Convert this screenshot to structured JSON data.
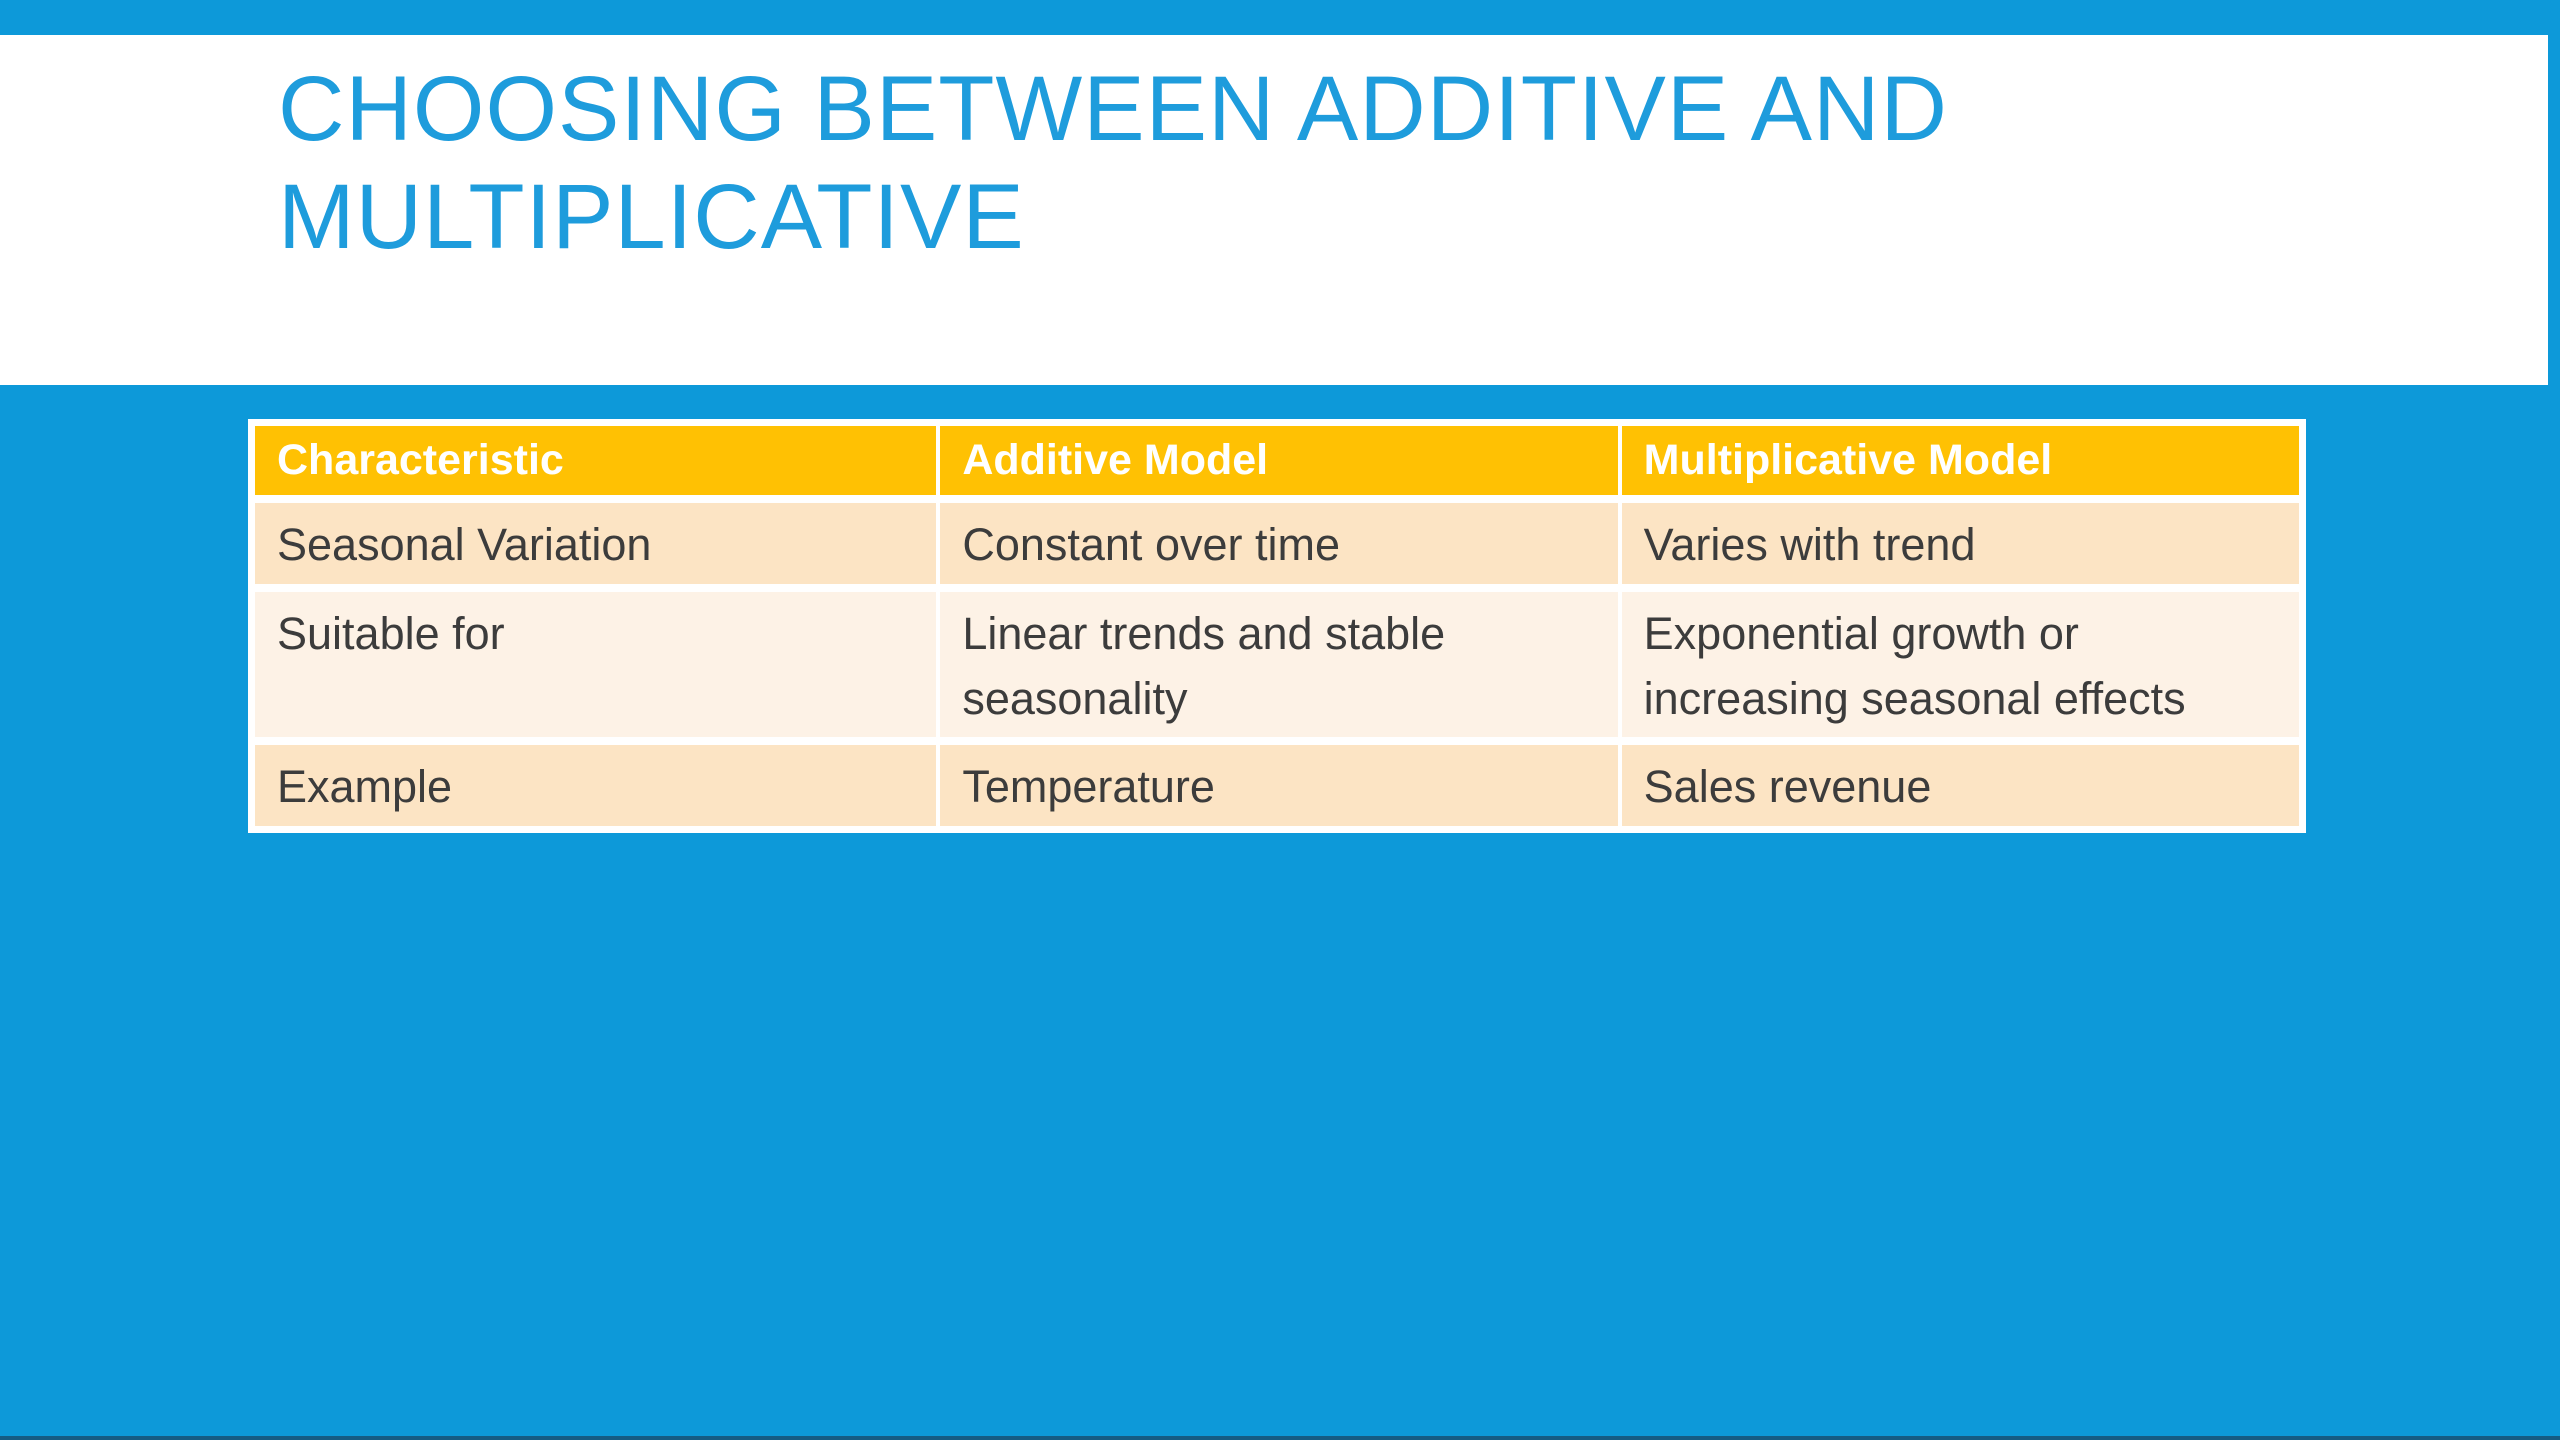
{
  "slide": {
    "title_lines": [
      "CHOOSING BETWEEN ADDITIVE AND",
      "MULTIPLICATIVE"
    ],
    "colors": {
      "background_blue": "#0d99d9",
      "title_blue": "#1e9cdc",
      "header_gold": "#ffc103",
      "row_peach": "#fce4c4",
      "row_cream": "#fdf2e6",
      "cell_text": "#3c3c3c",
      "header_text": "#ffffff",
      "table_border": "#ffffff",
      "bottom_edge": "#155c84"
    },
    "table": {
      "headers": [
        "Characteristic",
        "Additive Model",
        "Multiplicative Model"
      ],
      "rows": [
        [
          "Seasonal Variation",
          "Constant over time",
          "Varies with trend"
        ],
        [
          "Suitable for",
          "Linear trends and stable seasonality",
          "Exponential growth or increasing seasonal effects"
        ],
        [
          "Example",
          "Temperature",
          "Sales revenue"
        ]
      ]
    }
  }
}
